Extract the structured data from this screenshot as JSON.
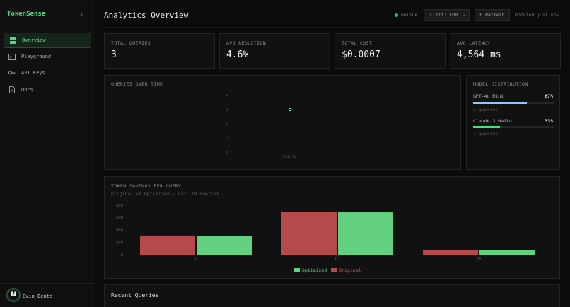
{
  "app": {
    "name": "TokenSense"
  },
  "sidebar": {
    "items": [
      {
        "label": "Overview",
        "icon": "grid-icon",
        "active": true
      },
      {
        "label": "Playground",
        "icon": "terminal-icon",
        "active": false
      },
      {
        "label": "API Keys",
        "icon": "key-icon",
        "active": false
      },
      {
        "label": "Docs",
        "icon": "document-icon",
        "active": false
      }
    ],
    "user": {
      "initial": "N",
      "name": "Evin Bento"
    }
  },
  "header": {
    "title": "Analytics Overview",
    "status": "online",
    "limit": "Limit: 100",
    "refresh": "↻ Refresh",
    "updated": "Updated just now"
  },
  "stats": [
    {
      "label": "TOTAL QUERIES",
      "value": "3"
    },
    {
      "label": "AVG REDUCTION",
      "value": "4.6%"
    },
    {
      "label": "TOTAL COST",
      "value": "$0.0007"
    },
    {
      "label": "AVG LATENCY",
      "value": "4,564 ms"
    }
  ],
  "queries_panel": {
    "title": "QUERIES OVER TIME"
  },
  "distribution": {
    "title": "MODEL DISTRIBUTION",
    "models": [
      {
        "name": "GPT-4o Mini",
        "percent": "67%",
        "fraction": 0.67,
        "queries": "2 queries",
        "color": "#93c5fd"
      },
      {
        "name": "Claude 3 Haiku",
        "percent": "33%",
        "fraction": 0.33,
        "queries": "1 queries",
        "color": "#4ade80"
      }
    ]
  },
  "savings_panel": {
    "title": "TOKEN SAVINGS PER QUERY",
    "subtitle": "Original vs Optimized — last 10 queries",
    "legend": {
      "optimized": "Optimized",
      "original": "Original"
    }
  },
  "recent": {
    "title": "Recent Queries"
  },
  "colors": {
    "accent": "#4ade80",
    "original": "#b44a4a",
    "optimized": "#62d07f"
  },
  "chart_data": [
    {
      "type": "scatter",
      "title": "QUERIES OVER TIME",
      "x": [
        "Feb 22"
      ],
      "y": [
        3
      ],
      "yticks": [
        0,
        1,
        2,
        3,
        4
      ],
      "ylim": [
        0,
        4
      ],
      "xlabel": "",
      "ylabel": "",
      "grid": false
    },
    {
      "type": "bar",
      "title": "TOKEN SAVINGS PER QUERY",
      "subtitle": "Original vs Optimized — last 10 queries",
      "categories": [
        "Q1",
        "Q2",
        "Q3"
      ],
      "series": [
        {
          "name": "Original",
          "values": [
            310,
            690,
            75
          ]
        },
        {
          "name": "Optimized",
          "values": [
            305,
            685,
            70
          ]
        }
      ],
      "yticks": [
        0,
        200,
        400,
        600,
        800
      ],
      "ylim": [
        0,
        800
      ],
      "legend": "bottom",
      "grid": false
    }
  ]
}
